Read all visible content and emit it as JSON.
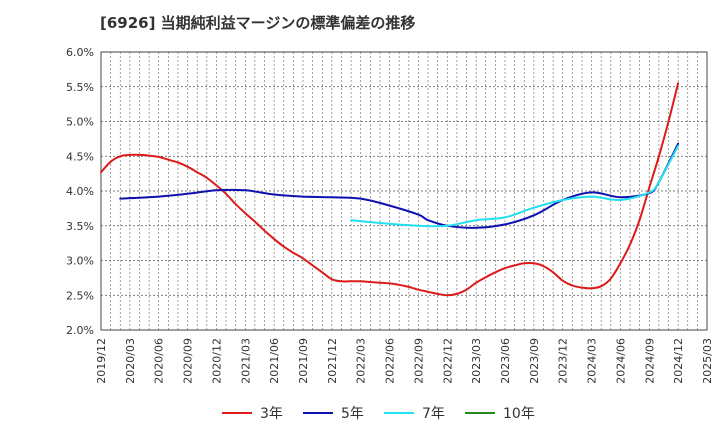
{
  "title": "[6926]  当期純利益マージンの標準偏差の推移",
  "chart_data": {
    "type": "line",
    "title": "[6926]  当期純利益マージンの標準偏差の推移",
    "ylim": [
      2.0,
      6.0
    ],
    "y_ticks": [
      "2.0%",
      "2.5%",
      "3.0%",
      "3.5%",
      "4.0%",
      "4.5%",
      "5.0%",
      "5.5%",
      "6.0%"
    ],
    "x_ticks": [
      "2019/12",
      "2020/03",
      "2020/06",
      "2020/09",
      "2020/12",
      "2021/03",
      "2021/06",
      "2021/09",
      "2021/12",
      "2022/03",
      "2022/06",
      "2022/09",
      "2022/12",
      "2023/03",
      "2023/06",
      "2023/09",
      "2023/12",
      "2024/03",
      "2024/06",
      "2024/09",
      "2024/12",
      "2025/03"
    ],
    "grid": true,
    "legend_position": "bottom",
    "series": [
      {
        "name": "3年",
        "color": "#dd1b1b",
        "points": [
          [
            "2019/12",
            4.27
          ],
          [
            "2020/01",
            4.42
          ],
          [
            "2020/02",
            4.5
          ],
          [
            "2020/03",
            4.52
          ],
          [
            "2020/04",
            4.52
          ],
          [
            "2020/05",
            4.51
          ],
          [
            "2020/06",
            4.49
          ],
          [
            "2020/07",
            4.45
          ],
          [
            "2020/08",
            4.41
          ],
          [
            "2020/09",
            4.35
          ],
          [
            "2020/10",
            4.27
          ],
          [
            "2020/11",
            4.19
          ],
          [
            "2020/12",
            4.08
          ],
          [
            "2021/01",
            3.96
          ],
          [
            "2021/02",
            3.81
          ],
          [
            "2021/03",
            3.68
          ],
          [
            "2021/04",
            3.56
          ],
          [
            "2021/05",
            3.43
          ],
          [
            "2021/06",
            3.31
          ],
          [
            "2021/07",
            3.2
          ],
          [
            "2021/08",
            3.11
          ],
          [
            "2021/09",
            3.03
          ],
          [
            "2021/10",
            2.93
          ],
          [
            "2021/11",
            2.83
          ],
          [
            "2021/12",
            2.73
          ],
          [
            "2022/01",
            2.7
          ],
          [
            "2022/02",
            2.7
          ],
          [
            "2022/03",
            2.7
          ],
          [
            "2022/04",
            2.69
          ],
          [
            "2022/05",
            2.68
          ],
          [
            "2022/06",
            2.67
          ],
          [
            "2022/07",
            2.65
          ],
          [
            "2022/08",
            2.62
          ],
          [
            "2022/09",
            2.58
          ],
          [
            "2022/10",
            2.55
          ],
          [
            "2022/11",
            2.52
          ],
          [
            "2022/12",
            2.5
          ],
          [
            "2023/01",
            2.52
          ],
          [
            "2023/02",
            2.58
          ],
          [
            "2023/03",
            2.68
          ],
          [
            "2023/04",
            2.76
          ],
          [
            "2023/05",
            2.83
          ],
          [
            "2023/06",
            2.89
          ],
          [
            "2023/07",
            2.93
          ],
          [
            "2023/08",
            2.96
          ],
          [
            "2023/09",
            2.96
          ],
          [
            "2023/10",
            2.92
          ],
          [
            "2023/11",
            2.83
          ],
          [
            "2023/12",
            2.71
          ],
          [
            "2024/01",
            2.64
          ],
          [
            "2024/02",
            2.61
          ],
          [
            "2024/03",
            2.6
          ],
          [
            "2024/04",
            2.63
          ],
          [
            "2024/05",
            2.74
          ],
          [
            "2024/06",
            2.96
          ],
          [
            "2024/07",
            3.23
          ],
          [
            "2024/08",
            3.59
          ],
          [
            "2024/09",
            4.05
          ],
          [
            "2024/10",
            4.5
          ],
          [
            "2024/11",
            5.0
          ],
          [
            "2024/12",
            5.55
          ]
        ]
      },
      {
        "name": "5年",
        "color": "#1010b0",
        "points": [
          [
            "2020/02",
            3.89
          ],
          [
            "2020/06",
            3.92
          ],
          [
            "2020/09",
            3.96
          ],
          [
            "2020/12",
            4.01
          ],
          [
            "2021/03",
            4.01
          ],
          [
            "2021/06",
            3.95
          ],
          [
            "2021/09",
            3.92
          ],
          [
            "2021/12",
            3.91
          ],
          [
            "2022/03",
            3.89
          ],
          [
            "2022/06",
            3.79
          ],
          [
            "2022/09",
            3.66
          ],
          [
            "2022/10",
            3.58
          ],
          [
            "2022/12",
            3.5
          ],
          [
            "2023/03",
            3.47
          ],
          [
            "2023/06",
            3.52
          ],
          [
            "2023/09",
            3.65
          ],
          [
            "2023/12",
            3.87
          ],
          [
            "2024/03",
            3.98
          ],
          [
            "2024/06",
            3.91
          ],
          [
            "2024/09",
            3.97
          ],
          [
            "2024/10",
            4.13
          ],
          [
            "2024/12",
            4.68
          ]
        ]
      },
      {
        "name": "7年",
        "color": "#22e0f0",
        "points": [
          [
            "2022/02",
            3.58
          ],
          [
            "2022/05",
            3.54
          ],
          [
            "2022/09",
            3.5
          ],
          [
            "2022/12",
            3.5
          ],
          [
            "2023/03",
            3.58
          ],
          [
            "2023/06",
            3.62
          ],
          [
            "2023/09",
            3.76
          ],
          [
            "2023/12",
            3.87
          ],
          [
            "2024/03",
            3.92
          ],
          [
            "2024/06",
            3.87
          ],
          [
            "2024/09",
            3.98
          ],
          [
            "2024/10",
            4.13
          ],
          [
            "2024/12",
            4.65
          ]
        ]
      },
      {
        "name": "10年",
        "color": "#1e8c1e",
        "points": []
      }
    ]
  }
}
